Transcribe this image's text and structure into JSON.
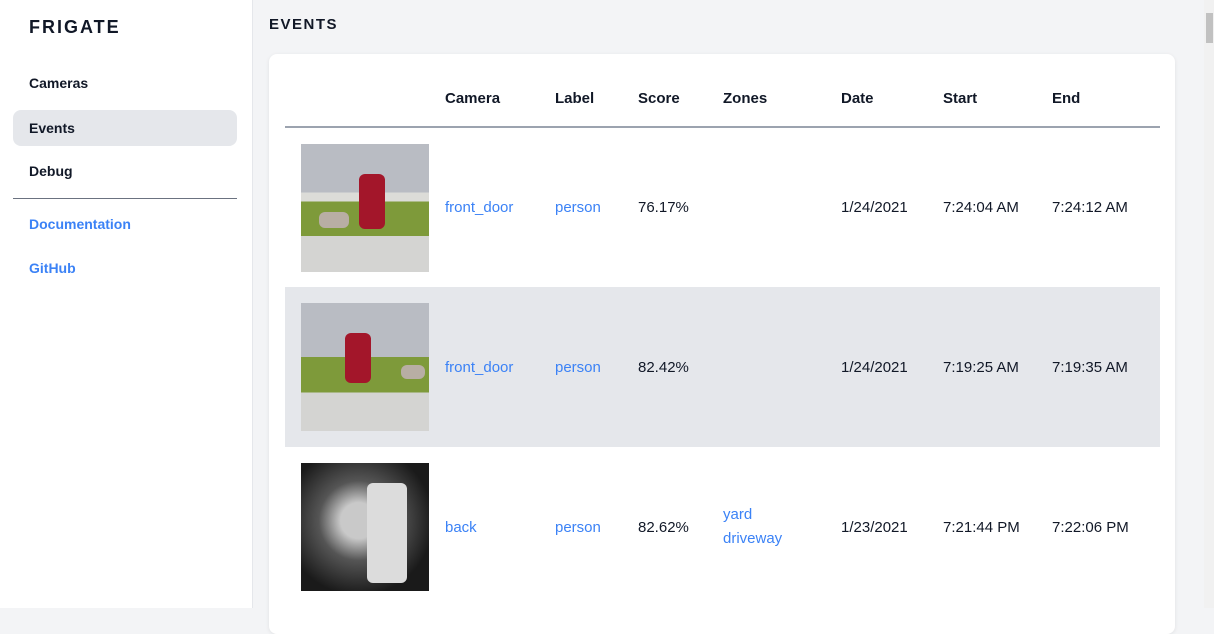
{
  "sidebar": {
    "brand": "FRIGATE",
    "items": [
      {
        "label": "Cameras"
      },
      {
        "label": "Events",
        "active": true
      },
      {
        "label": "Debug"
      }
    ],
    "links": [
      {
        "label": "Documentation"
      },
      {
        "label": "GitHub"
      }
    ]
  },
  "page": {
    "title": "EVENTS"
  },
  "table": {
    "headers": [
      "",
      "Camera",
      "Label",
      "Score",
      "Zones",
      "Date",
      "Start",
      "End"
    ],
    "rows": [
      {
        "camera": "front_door",
        "label": "person",
        "score": "76.17%",
        "zones": [
          "",
          ""
        ],
        "date": "1/24/2021",
        "start": "7:24:04 AM",
        "end": "7:24:12 AM"
      },
      {
        "camera": "front_door",
        "label": "person",
        "score": "82.42%",
        "zones": [
          "",
          ""
        ],
        "date": "1/24/2021",
        "start": "7:19:25 AM",
        "end": "7:19:35 AM"
      },
      {
        "camera": "back",
        "label": "person",
        "score": "82.62%",
        "zones": [
          "yard",
          "driveway"
        ],
        "date": "1/23/2021",
        "start": "7:21:44 PM",
        "end": "7:22:06 PM"
      }
    ]
  },
  "colors": {
    "accent": "#3b82f6",
    "active_bg": "#e5e7eb",
    "page_bg": "#f3f4f6"
  }
}
